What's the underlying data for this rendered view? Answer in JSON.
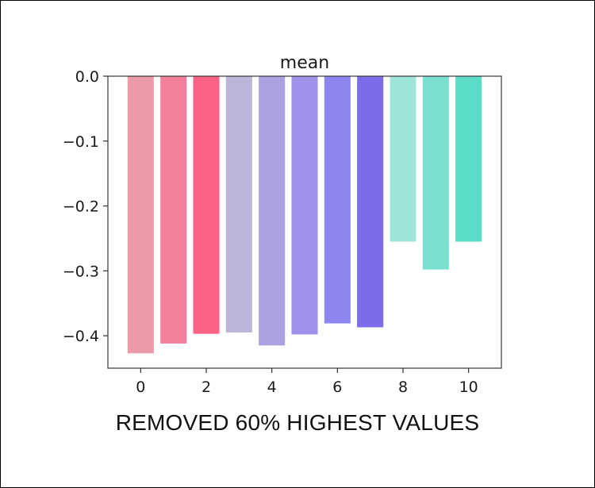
{
  "chart_data": {
    "type": "bar",
    "title": "mean",
    "xlabel": "",
    "ylabel": "",
    "x": [
      0,
      1,
      2,
      3,
      4,
      5,
      6,
      7,
      8,
      9,
      10
    ],
    "values": [
      -0.427,
      -0.412,
      -0.397,
      -0.395,
      -0.415,
      -0.398,
      -0.381,
      -0.387,
      -0.255,
      -0.298,
      -0.255
    ],
    "colors": [
      "#ec9aa8",
      "#f47f98",
      "#fa6183",
      "#bbb6d9",
      "#aaa3e0",
      "#9f92ea",
      "#8e86f0",
      "#7c6cea",
      "#9fe4d8",
      "#7bdfcf",
      "#5bdcc6"
    ],
    "ylim": [
      -0.45,
      0.0
    ],
    "xlim": [
      -1,
      11
    ],
    "yticks": [
      0.0,
      -0.1,
      -0.2,
      -0.3,
      -0.4
    ],
    "ytick_labels": [
      "0.0",
      "−0.1",
      "−0.2",
      "−0.3",
      "−0.4"
    ],
    "xticks": [
      0,
      2,
      4,
      6,
      8,
      10
    ],
    "xtick_labels": [
      "0",
      "2",
      "4",
      "6",
      "8",
      "10"
    ],
    "grid": false,
    "legend": "none"
  },
  "caption": "REMOVED 60% HIGHEST VALUES"
}
